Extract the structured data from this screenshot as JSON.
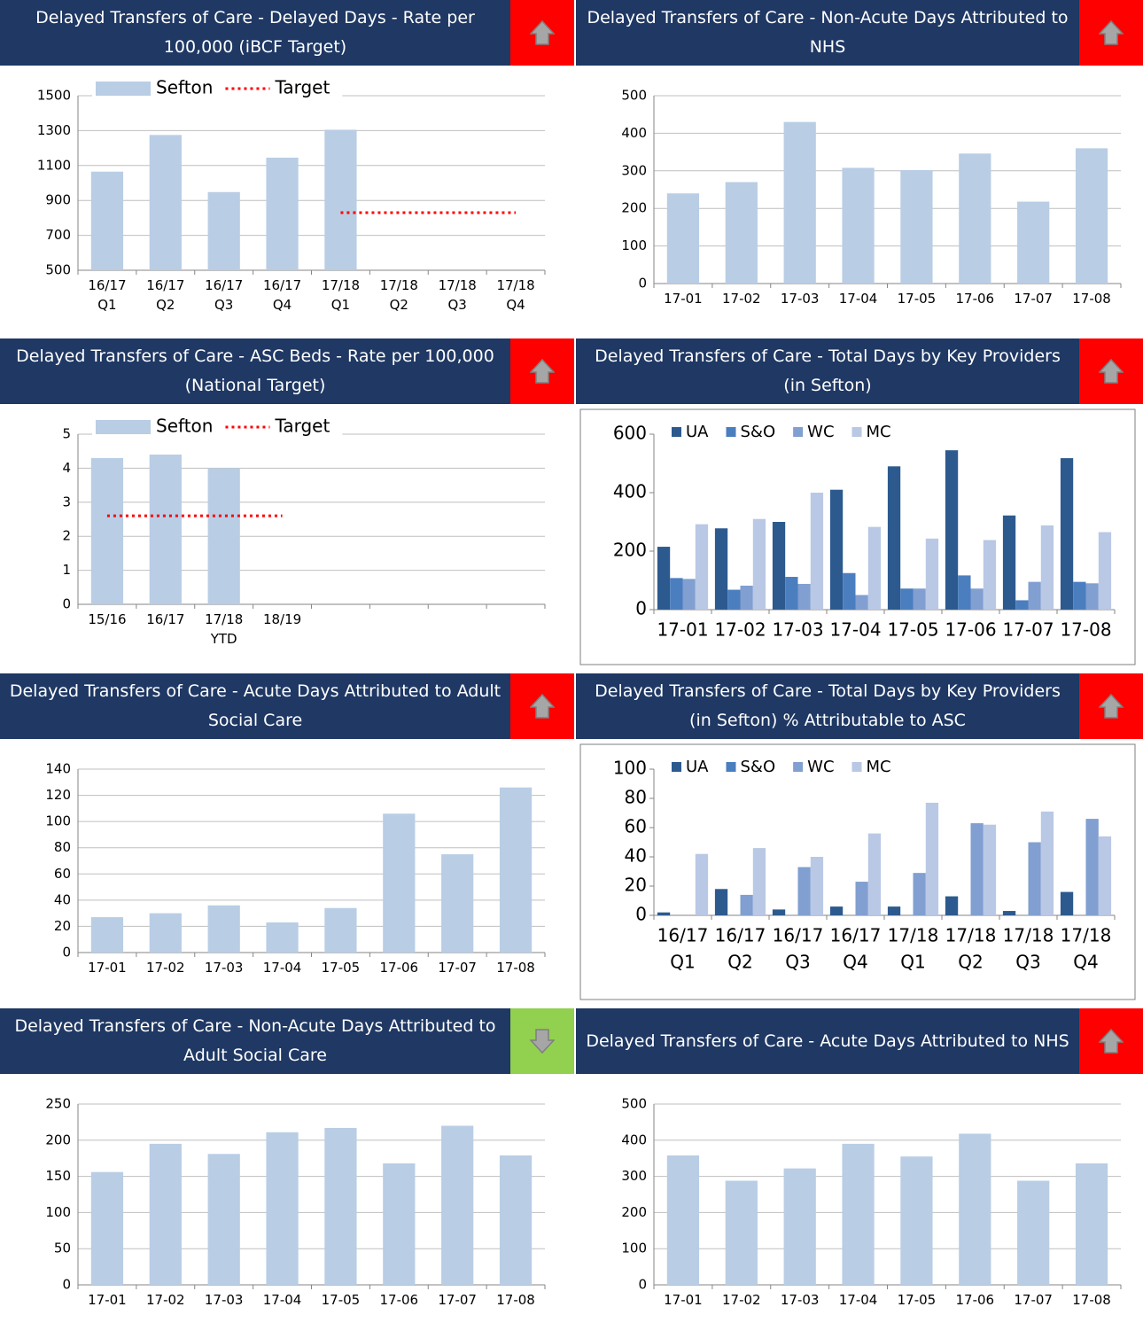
{
  "chart_data": [
    {
      "type": "bar",
      "title": "Delayed Transfers of Care - Delayed Days - Rate per 100,000 (iBCF Target)",
      "indicator": "up",
      "indicator_color": "#ff0000",
      "categories": [
        [
          "16/17",
          "Q1"
        ],
        [
          "16/17",
          "Q2"
        ],
        [
          "16/17",
          "Q3"
        ],
        [
          "16/17",
          "Q4"
        ],
        [
          "17/18",
          "Q1"
        ],
        [
          "17/18",
          "Q2"
        ],
        [
          "17/18",
          "Q3"
        ],
        [
          "17/18",
          "Q4"
        ]
      ],
      "series": [
        {
          "name": "Sefton",
          "color": "#b9cde5",
          "values": [
            1065,
            1275,
            948,
            1145,
            1305,
            null,
            null,
            null
          ]
        },
        {
          "name": "Target",
          "color": "#ff0000",
          "kind": "line",
          "values": [
            null,
            null,
            null,
            null,
            830,
            830,
            830,
            830
          ]
        }
      ],
      "ylim": [
        500,
        1500
      ],
      "yticks": [
        500,
        700,
        900,
        1100,
        1300,
        1500
      ],
      "grid": true,
      "legend": true
    },
    {
      "type": "bar",
      "title": "Delayed Transfers of Care - Non-Acute Days Attributed to NHS",
      "indicator": "up",
      "indicator_color": "#ff0000",
      "categories": [
        [
          "17-01"
        ],
        [
          "17-02"
        ],
        [
          "17-03"
        ],
        [
          "17-04"
        ],
        [
          "17-05"
        ],
        [
          "17-06"
        ],
        [
          "17-07"
        ],
        [
          "17-08"
        ]
      ],
      "values": [
        240,
        270,
        430,
        308,
        302,
        346,
        218,
        360
      ],
      "color": "#b9cde5",
      "ylim": [
        0,
        500
      ],
      "yticks": [
        0,
        100,
        200,
        300,
        400,
        500
      ],
      "grid": true
    },
    {
      "type": "bar",
      "title": "Delayed Transfers of Care - ASC Beds - Rate per 100,000 (National Target)",
      "indicator": "up",
      "indicator_color": "#ff0000",
      "categories": [
        [
          "15/16"
        ],
        [
          "16/17"
        ],
        [
          "17/18",
          "YTD"
        ],
        [
          "18/19"
        ],
        null,
        null,
        null,
        null
      ],
      "series": [
        {
          "name": "Sefton",
          "color": "#b9cde5",
          "values": [
            4.3,
            4.4,
            4.0,
            null,
            null,
            null,
            null,
            null
          ]
        },
        {
          "name": "Target",
          "color": "#ff0000",
          "kind": "line",
          "values": [
            2.6,
            2.6,
            2.6,
            2.6,
            null,
            null,
            null,
            null
          ]
        }
      ],
      "ylim": [
        0,
        5
      ],
      "yticks": [
        0,
        1,
        2,
        3,
        4,
        5
      ],
      "grid": true,
      "legend": true
    },
    {
      "type": "bar",
      "title": "Delayed Transfers of Care - Total Days by Key Providers (in Sefton)",
      "indicator": "up",
      "indicator_color": "#ff0000",
      "categories": [
        [
          "17-01"
        ],
        [
          "17-02"
        ],
        [
          "17-03"
        ],
        [
          "17-04"
        ],
        [
          "17-05"
        ],
        [
          "17-06"
        ],
        [
          "17-07"
        ],
        [
          "17-08"
        ]
      ],
      "series": [
        {
          "name": "UA",
          "color": "#2c5a8f",
          "values": [
            215,
            278,
            300,
            410,
            490,
            545,
            322,
            518
          ]
        },
        {
          "name": "S&O",
          "color": "#4a7ebf",
          "values": [
            108,
            68,
            112,
            125,
            72,
            117,
            32,
            95
          ]
        },
        {
          "name": "WC",
          "color": "#819fd1",
          "values": [
            105,
            82,
            88,
            50,
            72,
            72,
            95,
            90
          ]
        },
        {
          "name": "MC",
          "color": "#b9c8e4",
          "values": [
            292,
            310,
            400,
            283,
            243,
            238,
            288,
            265
          ]
        }
      ],
      "ylim": [
        0,
        600
      ],
      "yticks": [
        0,
        200,
        400,
        600
      ],
      "grid": false,
      "legend": true,
      "boxed": true
    },
    {
      "type": "bar",
      "title": "Delayed Transfers of Care - Acute Days Attributed to Adult Social Care",
      "indicator": "up",
      "indicator_color": "#ff0000",
      "categories": [
        [
          "17-01"
        ],
        [
          "17-02"
        ],
        [
          "17-03"
        ],
        [
          "17-04"
        ],
        [
          "17-05"
        ],
        [
          "17-06"
        ],
        [
          "17-07"
        ],
        [
          "17-08"
        ]
      ],
      "values": [
        27,
        30,
        36,
        23,
        34,
        106,
        75,
        126
      ],
      "color": "#b9cde5",
      "ylim": [
        0,
        140
      ],
      "yticks": [
        0,
        20,
        40,
        60,
        80,
        100,
        120,
        140
      ],
      "grid": true
    },
    {
      "type": "bar",
      "title": "Delayed Transfers of Care - Total Days by Key Providers (in Sefton) % Attributable to ASC",
      "indicator": "up",
      "indicator_color": "#ff0000",
      "categories": [
        [
          "16/17",
          "Q1"
        ],
        [
          "16/17",
          "Q2"
        ],
        [
          "16/17",
          "Q3"
        ],
        [
          "16/17",
          "Q4"
        ],
        [
          "17/18",
          "Q1"
        ],
        [
          "17/18",
          "Q2"
        ],
        [
          "17/18",
          "Q3"
        ],
        [
          "17/18",
          "Q4"
        ]
      ],
      "series": [
        {
          "name": "UA",
          "color": "#2c5a8f",
          "values": [
            2,
            18,
            4,
            6,
            6,
            13,
            3,
            16
          ]
        },
        {
          "name": "S&O",
          "color": "#4a7ebf",
          "values": [
            0,
            0,
            0,
            0,
            0,
            0,
            0,
            0
          ]
        },
        {
          "name": "WC",
          "color": "#819fd1",
          "values": [
            0,
            14,
            33,
            23,
            29,
            63,
            50,
            66
          ]
        },
        {
          "name": "MC",
          "color": "#b9c8e4",
          "values": [
            42,
            46,
            40,
            56,
            77,
            62,
            71,
            54
          ]
        }
      ],
      "ylim": [
        0,
        100
      ],
      "yticks": [
        0,
        20,
        40,
        60,
        80,
        100
      ],
      "grid": false,
      "legend": true,
      "boxed": true
    },
    {
      "type": "bar",
      "title": "Delayed Transfers of Care - Non-Acute Days Attributed to Adult Social Care",
      "indicator": "down",
      "indicator_color": "#92d050",
      "categories": [
        [
          "17-01"
        ],
        [
          "17-02"
        ],
        [
          "17-03"
        ],
        [
          "17-04"
        ],
        [
          "17-05"
        ],
        [
          "17-06"
        ],
        [
          "17-07"
        ],
        [
          "17-08"
        ]
      ],
      "values": [
        156,
        195,
        181,
        211,
        217,
        168,
        220,
        179
      ],
      "color": "#b9cde5",
      "ylim": [
        0,
        250
      ],
      "yticks": [
        0,
        50,
        100,
        150,
        200,
        250
      ],
      "grid": true
    },
    {
      "type": "bar",
      "title": "Delayed Transfers of Care - Acute Days Attributed to NHS",
      "indicator": "up",
      "indicator_color": "#ff0000",
      "categories": [
        [
          "17-01"
        ],
        [
          "17-02"
        ],
        [
          "17-03"
        ],
        [
          "17-04"
        ],
        [
          "17-05"
        ],
        [
          "17-06"
        ],
        [
          "17-07"
        ],
        [
          "17-08"
        ]
      ],
      "values": [
        358,
        288,
        322,
        390,
        355,
        418,
        288,
        336
      ],
      "color": "#b9cde5",
      "ylim": [
        0,
        500
      ],
      "yticks": [
        0,
        100,
        200,
        300,
        400,
        500
      ],
      "grid": true
    }
  ]
}
